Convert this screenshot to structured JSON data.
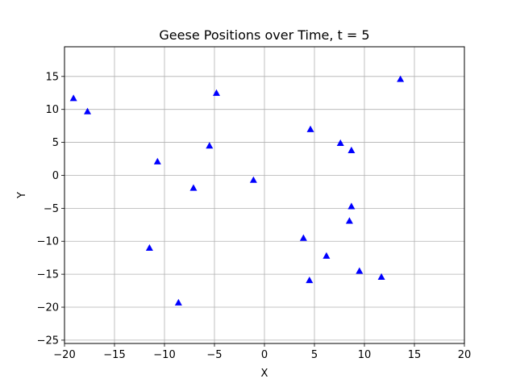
{
  "chart_data": {
    "type": "scatter",
    "title": "Geese Positions over Time, t = 5",
    "xlabel": "X",
    "ylabel": "Y",
    "xlim": [
      -20,
      20
    ],
    "ylim": [
      -25.5,
      19.5
    ],
    "xticks": [
      -20,
      -15,
      -10,
      -5,
      0,
      5,
      10,
      15,
      20
    ],
    "yticks": [
      -25,
      -20,
      -15,
      -10,
      -5,
      0,
      5,
      10,
      15
    ],
    "xtick_labels": [
      "−20",
      "−15",
      "−10",
      "−5",
      "0",
      "5",
      "10",
      "15",
      "20"
    ],
    "ytick_labels": [
      "−25",
      "−20",
      "−15",
      "−10",
      "−5",
      "0",
      "5",
      "10",
      "15"
    ],
    "grid": true,
    "marker": "triangle-up",
    "color": "#0000ff",
    "points": [
      {
        "x": -19.1,
        "y": 11.7
      },
      {
        "x": -17.7,
        "y": 9.7
      },
      {
        "x": -4.8,
        "y": 12.5
      },
      {
        "x": 13.6,
        "y": 14.6
      },
      {
        "x": 4.6,
        "y": 7.0
      },
      {
        "x": 7.6,
        "y": 4.9
      },
      {
        "x": 8.7,
        "y": 3.8
      },
      {
        "x": -5.5,
        "y": 4.5
      },
      {
        "x": -10.7,
        "y": 2.1
      },
      {
        "x": -1.1,
        "y": -0.7
      },
      {
        "x": -7.1,
        "y": -1.9
      },
      {
        "x": 8.7,
        "y": -4.7
      },
      {
        "x": 8.5,
        "y": -6.9
      },
      {
        "x": 3.9,
        "y": -9.5
      },
      {
        "x": -11.5,
        "y": -11.0
      },
      {
        "x": 6.2,
        "y": -12.2
      },
      {
        "x": 9.5,
        "y": -14.5
      },
      {
        "x": 11.7,
        "y": -15.4
      },
      {
        "x": 4.5,
        "y": -15.9
      },
      {
        "x": -8.6,
        "y": -19.3
      }
    ]
  }
}
